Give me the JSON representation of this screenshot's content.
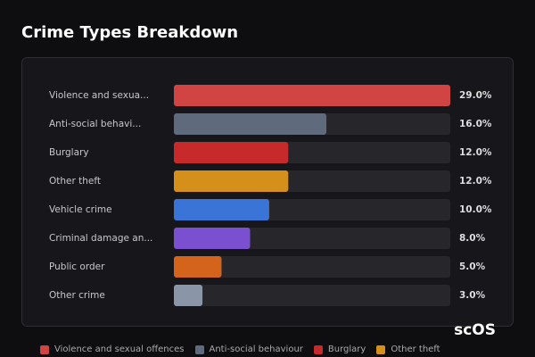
{
  "chart_data": {
    "type": "bar",
    "orientation": "horizontal",
    "title": "Crime Types Breakdown",
    "categories": [
      "Violence and sexua...",
      "Anti-social behavi...",
      "Burglary",
      "Other theft",
      "Vehicle crime",
      "Criminal damage an...",
      "Public order",
      "Other crime"
    ],
    "values": [
      29,
      16,
      12,
      12,
      10,
      8,
      5,
      3
    ],
    "value_labels": [
      "29.0%",
      "16.0%",
      "12.0%",
      "12.0%",
      "10.0%",
      "8.0%",
      "5.0%",
      "3.0%"
    ],
    "colors": [
      "#d04444",
      "#5f6b7c",
      "#c62a2a",
      "#d4901a",
      "#3a74d6",
      "#7b50d0",
      "#d4641c",
      "#8a96a8"
    ],
    "xlim": [
      0,
      29
    ],
    "legend": [
      {
        "name": "Violence and sexual offences",
        "color": "#d04444"
      },
      {
        "name": "Anti-social behaviour",
        "color": "#5f6b7c"
      },
      {
        "name": "Burglary",
        "color": "#c62a2a"
      },
      {
        "name": "Other theft",
        "color": "#d4901a"
      }
    ]
  },
  "watermark": "scOS"
}
